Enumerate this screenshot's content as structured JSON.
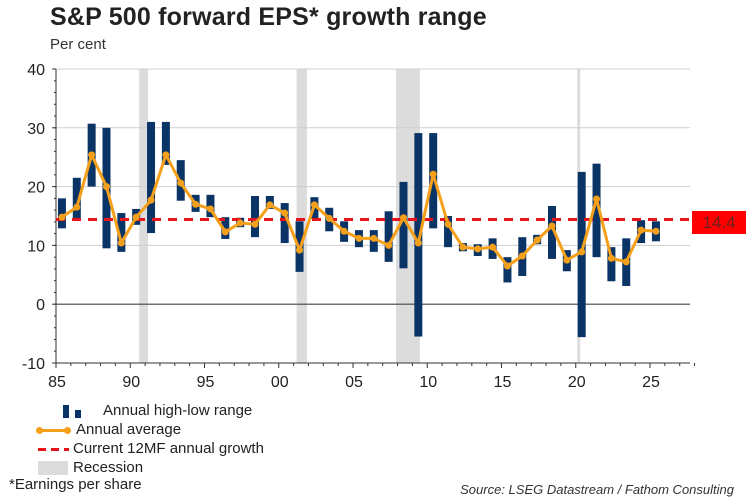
{
  "header": {
    "title": "S&P 500 forward EPS* growth range",
    "unit_label": "Per cent"
  },
  "badge": {
    "current_value_label": "14.4"
  },
  "legend": {
    "range": "Annual high-low range",
    "average": "Annual average",
    "current": "Current 12MF annual growth",
    "recession": "Recession"
  },
  "footnote": "*Earnings per share",
  "source": "Source: LSEG Datastream / Fathom Consulting",
  "colors": {
    "range_bar": "#0b3466",
    "average_line": "#f5a01a",
    "current_line": "#e8141c",
    "recession": "#dcdcdc",
    "badge": "#ff0000"
  },
  "chart_data": {
    "type": "bar",
    "title": "S&P 500 forward EPS* growth range",
    "ylabel": "Per cent",
    "xlabel": "",
    "ylim": [
      -10,
      40
    ],
    "xlim": [
      1985,
      2028
    ],
    "yticks": [
      40,
      30,
      20,
      10,
      0,
      -10
    ],
    "xticks": [
      {
        "year": 1985,
        "label": "85"
      },
      {
        "year": 1990,
        "label": "90"
      },
      {
        "year": 1995,
        "label": "95"
      },
      {
        "year": 2000,
        "label": "00"
      },
      {
        "year": 2005,
        "label": "05"
      },
      {
        "year": 2010,
        "label": "10"
      },
      {
        "year": 2015,
        "label": "15"
      },
      {
        "year": 2020,
        "label": "20"
      },
      {
        "year": 2025,
        "label": "25"
      }
    ],
    "grid": true,
    "legend_position": "bottom-left",
    "categories": [
      1985,
      1986,
      1987,
      1988,
      1989,
      1990,
      1991,
      1992,
      1993,
      1994,
      1995,
      1996,
      1997,
      1998,
      1999,
      2000,
      2001,
      2002,
      2003,
      2004,
      2005,
      2006,
      2007,
      2008,
      2009,
      2010,
      2011,
      2012,
      2013,
      2014,
      2015,
      2016,
      2017,
      2018,
      2019,
      2020,
      2021,
      2022,
      2023,
      2024,
      2025
    ],
    "series": [
      {
        "name": "Annual high",
        "values": [
          18.0,
          21.5,
          30.7,
          30.0,
          15.5,
          16.2,
          31.0,
          31.0,
          24.5,
          18.6,
          18.6,
          14.8,
          14.7,
          18.4,
          18.4,
          17.2,
          14.1,
          18.2,
          16.4,
          14.1,
          12.6,
          12.6,
          15.8,
          20.8,
          29.1,
          29.1,
          15.0,
          10.4,
          10.2,
          11.2,
          8.0,
          11.4,
          11.8,
          16.7,
          9.2,
          22.5,
          23.9,
          9.7,
          11.2,
          14.3,
          14.1
        ]
      },
      {
        "name": "Annual low",
        "values": [
          12.9,
          14.3,
          20.0,
          9.5,
          8.9,
          13.5,
          12.1,
          23.7,
          17.6,
          15.7,
          14.8,
          11.1,
          13.1,
          11.4,
          16.2,
          10.4,
          5.5,
          14.5,
          12.4,
          10.6,
          9.7,
          8.9,
          7.2,
          6.1,
          -5.5,
          12.9,
          9.7,
          9.0,
          8.2,
          7.7,
          3.7,
          4.8,
          10.2,
          7.7,
          5.6,
          -5.6,
          8.0,
          3.9,
          3.1,
          10.4,
          10.7
        ]
      },
      {
        "name": "Annual average",
        "values": [
          14.8,
          16.5,
          25.4,
          20.0,
          10.4,
          14.8,
          17.7,
          25.4,
          20.6,
          17.0,
          16.2,
          12.3,
          13.8,
          13.6,
          16.9,
          15.5,
          9.2,
          16.9,
          14.6,
          12.4,
          11.2,
          11.2,
          10.0,
          14.7,
          10.4,
          22.1,
          13.6,
          9.7,
          9.4,
          9.7,
          6.5,
          8.2,
          10.9,
          13.3,
          7.5,
          8.9,
          17.9,
          7.8,
          7.2,
          12.6,
          12.4
        ]
      }
    ],
    "current_12mf_growth": 14.4,
    "recessions": [
      {
        "start": 1990.6,
        "end": 1991.2
      },
      {
        "start": 2001.2,
        "end": 2001.9
      },
      {
        "start": 2007.9,
        "end": 2009.5
      },
      {
        "start": 2020.1,
        "end": 2020.3
      }
    ]
  }
}
